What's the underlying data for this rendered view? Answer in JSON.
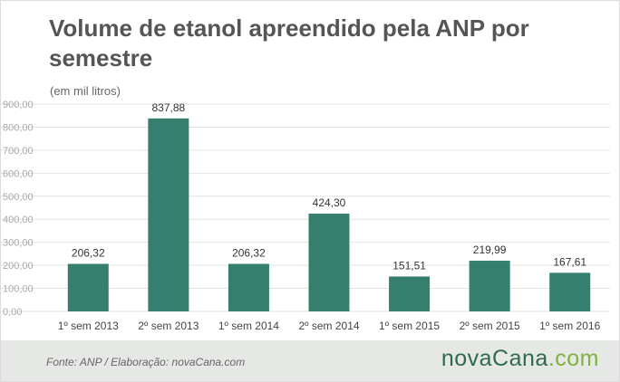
{
  "header": {
    "title": "Volume de etanol apreendido pela ANP por semestre",
    "unit_note": "(em mil litros)"
  },
  "footer": {
    "source": "Fonte:  ANP  / Elaboração:  novaCana.com",
    "brand_main": "novaCana",
    "brand_suffix": ".com"
  },
  "colors": {
    "bar": "#367f6e",
    "grid": "#e2e2e2",
    "tick_text": "#a8a8a8",
    "category_text": "#444444",
    "label_text": "#333333"
  },
  "chart_data": {
    "type": "bar",
    "title": "Volume de etanol apreendido pela ANP por semestre",
    "ylabel": "(em mil litros)",
    "xlabel": "",
    "categories": [
      "1º sem 2013",
      "2º sem 2013",
      "1º sem 2014",
      "2º sem 2014",
      "1º sem 2015",
      "2º sem 2015",
      "1º sem 2016"
    ],
    "values": [
      206.32,
      837.88,
      206.32,
      424.3,
      151.51,
      219.99,
      167.61
    ],
    "value_labels": [
      "206,32",
      "837,88",
      "206,32",
      "424,30",
      "151,51",
      "219,99",
      "167,61"
    ],
    "ylim": [
      0,
      900
    ],
    "yticks": [
      0,
      100,
      200,
      300,
      400,
      500,
      600,
      700,
      800,
      900
    ],
    "ytick_labels": [
      "0,00",
      "100,00",
      "200,00",
      "300,00",
      "400,00",
      "500,00",
      "600,00",
      "700,00",
      "800,00",
      "900,00"
    ],
    "grid": true,
    "legend": "none"
  }
}
